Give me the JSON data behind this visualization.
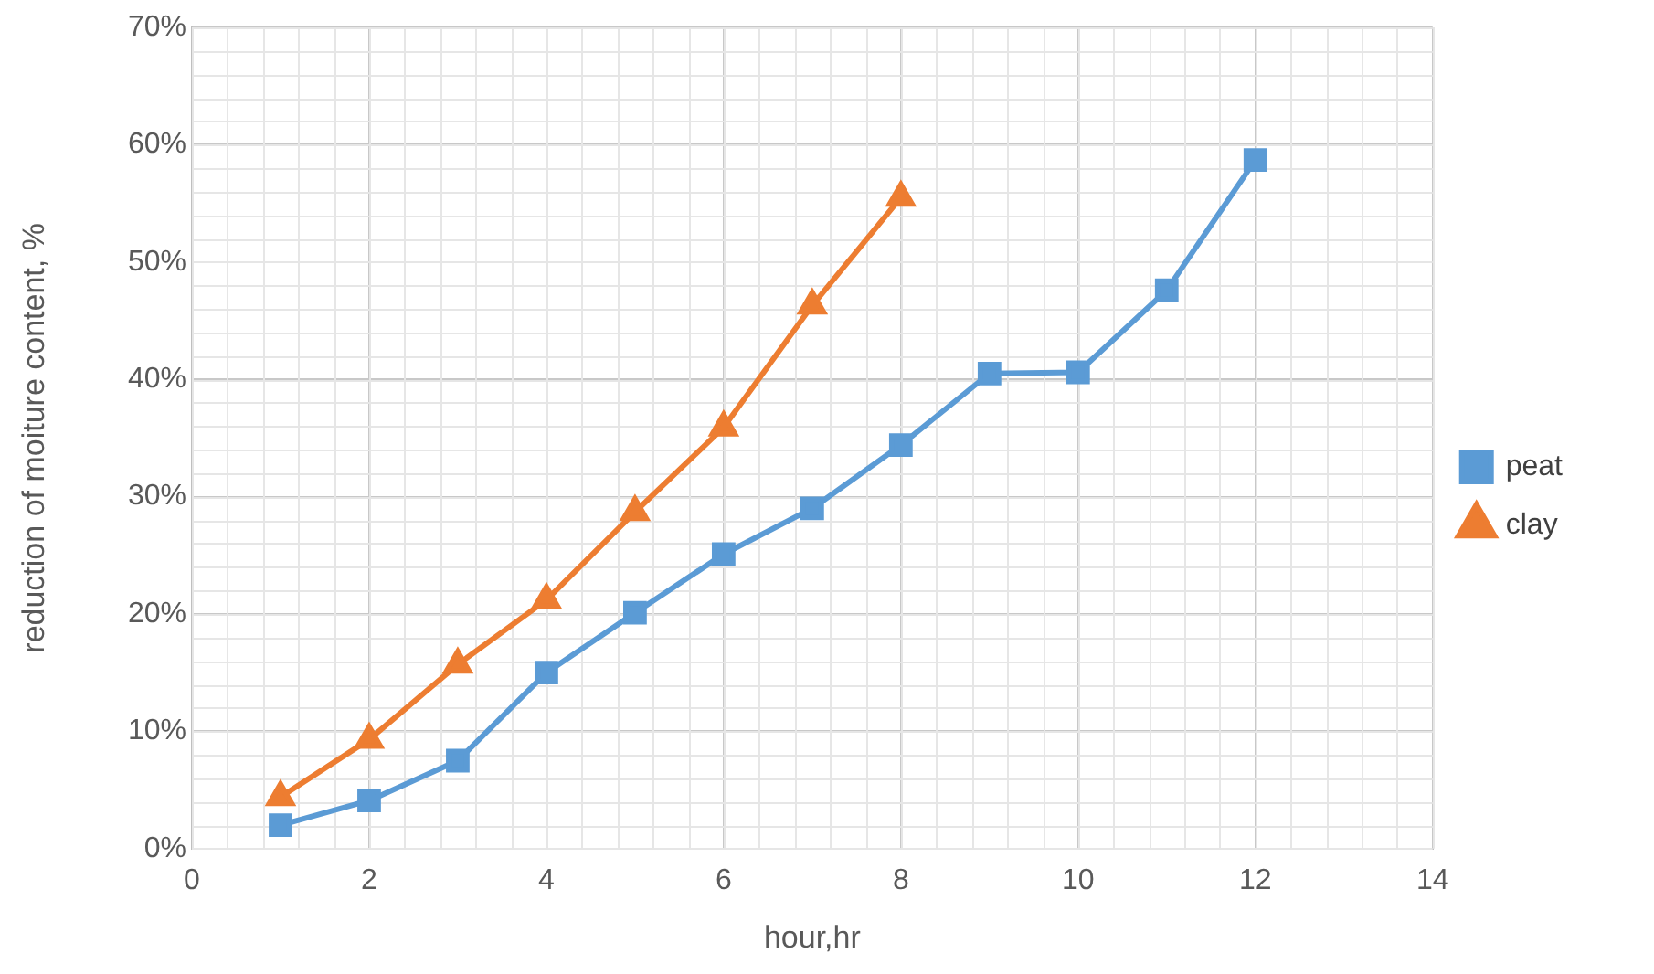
{
  "chart_data": {
    "type": "line",
    "xlabel": "hour,hr",
    "ylabel": "reduction of moiture content, %",
    "xlim": [
      0,
      14
    ],
    "xticks": [
      0,
      2,
      4,
      6,
      8,
      10,
      12,
      14
    ],
    "ylim": [
      0,
      70
    ],
    "yticks": [
      {
        "value": 0,
        "label": "0%"
      },
      {
        "value": 10,
        "label": "10%"
      },
      {
        "value": 20,
        "label": "20%"
      },
      {
        "value": 30,
        "label": "30%"
      },
      {
        "value": 40,
        "label": "40%"
      },
      {
        "value": 50,
        "label": "50%"
      },
      {
        "value": 60,
        "label": "60%"
      },
      {
        "value": 70,
        "label": "70%"
      }
    ],
    "grid": true,
    "legend": "right",
    "line_style": "solid",
    "series": [
      {
        "name": "peat",
        "color": "#5b9bd5",
        "marker": "square",
        "x": [
          1,
          2,
          3,
          4,
          5,
          6,
          7,
          8,
          9,
          10,
          11,
          12
        ],
        "values": [
          2,
          4.1,
          7.5,
          15,
          20.1,
          25.1,
          29,
          34.4,
          40.5,
          40.6,
          47.6,
          58.7
        ]
      },
      {
        "name": "clay",
        "color": "#ed7d31",
        "marker": "triangle",
        "x": [
          1,
          2,
          3,
          4,
          5,
          6,
          7,
          8
        ],
        "values": [
          4.4,
          9.3,
          15.7,
          21.2,
          28.7,
          35.9,
          46.3,
          55.5
        ]
      }
    ]
  }
}
